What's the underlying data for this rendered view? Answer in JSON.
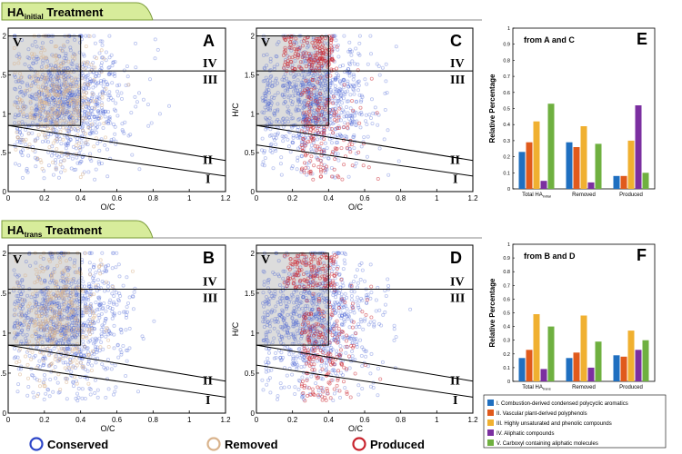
{
  "banners": [
    {
      "name": "initial",
      "prefix": "HA",
      "sub": "initial",
      "suffix": " Treatment"
    },
    {
      "name": "trans",
      "prefix": "HA",
      "sub": "trans",
      "suffix": " Treatment"
    }
  ],
  "scatter": {
    "x_label": "O/C",
    "y_label": "H/C",
    "x_ticks": [
      "0",
      "0.2",
      "0.4",
      "0.6",
      "0.8",
      "1",
      "1.2"
    ],
    "y_ticks": [
      "0",
      "0.5",
      "1",
      "1.5",
      "2"
    ],
    "xlim": [
      0,
      1.2
    ],
    "ylim": [
      0,
      2.1
    ],
    "regions": [
      "V",
      "IV",
      "III",
      "II",
      "I"
    ],
    "panels": [
      {
        "letter": "A",
        "layers": [
          "conserved",
          "removed"
        ]
      },
      {
        "letter": "C",
        "layers": [
          "conserved",
          "produced"
        ]
      },
      {
        "letter": "B",
        "layers": [
          "conserved",
          "removed"
        ]
      },
      {
        "letter": "D",
        "layers": [
          "conserved",
          "produced"
        ]
      }
    ]
  },
  "point_legend": [
    {
      "name": "Conserved",
      "color": "#2d46c8"
    },
    {
      "name": "Removed",
      "color": "#d9b38c"
    },
    {
      "name": "Produced",
      "color": "#c8232d"
    }
  ],
  "chart_data": [
    {
      "type": "bar",
      "panel": "E",
      "title": "from A and C",
      "ylabel": "Relative Percentage",
      "ylim": [
        0,
        1
      ],
      "y_ticks": [
        "0",
        "0.1",
        "0.2",
        "0.3",
        "0.4",
        "0.5",
        "0.6",
        "0.7",
        "0.8",
        "0.9",
        "1"
      ],
      "categories": [
        {
          "main": "Total HA",
          "sub": "initial"
        },
        {
          "main": "Removed",
          "sub": ""
        },
        {
          "main": "Produced",
          "sub": ""
        }
      ],
      "series": [
        {
          "name": "I. Combustion-derived condensed polycyclic aromatics",
          "color": "#1f6fc0",
          "values": [
            0.23,
            0.29,
            0.08
          ]
        },
        {
          "name": "II. Vascular plant-derived polyphenols",
          "color": "#e05a1c",
          "values": [
            0.29,
            0.26,
            0.08
          ]
        },
        {
          "name": "III. Highly unsaturated and phenolic compounds",
          "color": "#f0b030",
          "values": [
            0.42,
            0.39,
            0.3
          ]
        },
        {
          "name": "IV. Aliphatic compounds",
          "color": "#7b2fa0",
          "values": [
            0.05,
            0.04,
            0.52
          ]
        },
        {
          "name": "V. Carboxyl containing aliphatic molecules",
          "color": "#6fb040",
          "values": [
            0.53,
            0.28,
            0.1
          ]
        }
      ]
    },
    {
      "type": "bar",
      "panel": "F",
      "title": "from B and D",
      "ylabel": "Relative Percentage",
      "ylim": [
        0,
        1
      ],
      "y_ticks": [
        "0",
        "0.1",
        "0.2",
        "0.3",
        "0.4",
        "0.5",
        "0.6",
        "0.7",
        "0.8",
        "0.9",
        "1"
      ],
      "categories": [
        {
          "main": "Total HA",
          "sub": "trans"
        },
        {
          "main": "Removed",
          "sub": ""
        },
        {
          "main": "Produced",
          "sub": ""
        }
      ],
      "series": [
        {
          "name": "I. Combustion-derived condensed polycyclic aromatics",
          "color": "#1f6fc0",
          "values": [
            0.17,
            0.17,
            0.19
          ]
        },
        {
          "name": "II. Vascular plant-derived polyphenols",
          "color": "#e05a1c",
          "values": [
            0.23,
            0.21,
            0.18
          ]
        },
        {
          "name": "III. Highly unsaturated and phenolic compounds",
          "color": "#f0b030",
          "values": [
            0.49,
            0.48,
            0.37
          ]
        },
        {
          "name": "IV. Aliphatic compounds",
          "color": "#7b2fa0",
          "values": [
            0.09,
            0.1,
            0.23
          ]
        },
        {
          "name": "V. Carboxyl containing aliphatic molecules",
          "color": "#6fb040",
          "values": [
            0.4,
            0.29,
            0.3
          ]
        }
      ]
    }
  ]
}
